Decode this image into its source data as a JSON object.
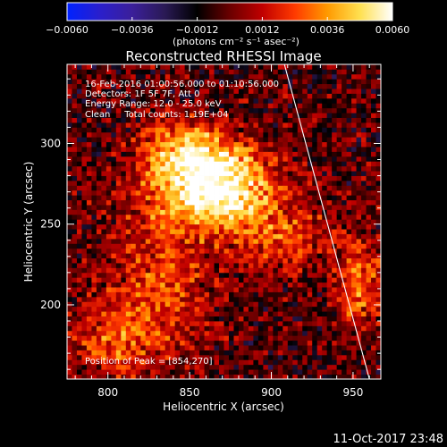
{
  "chart_data": {
    "type": "heatmap",
    "title": "Reconstructed RHESSI Image",
    "xlabel": "Heliocentric X (arcsec)",
    "ylabel": "Heliocentric Y (arcsec)",
    "xlim": [
      775,
      967
    ],
    "ylim": [
      154,
      349
    ],
    "x_ticks": [
      "800",
      "850",
      "900",
      "950"
    ],
    "y_ticks": [
      "200",
      "250",
      "300"
    ],
    "colorbar": {
      "label": "(photons cm⁻² s⁻¹ asec⁻²)",
      "range": [
        -0.006,
        0.006
      ],
      "ticks": [
        "−0.0060",
        "−0.0036",
        "−0.0012",
        "0.0012",
        "0.0036",
        "0.0060"
      ],
      "colors": [
        "#0022ff",
        "#2a1fcc",
        "#3b1f9a",
        "#2a1a55",
        "#000000",
        "#6a0000",
        "#c00000",
        "#ff3a00",
        "#ff9a00",
        "#ffe050",
        "#ffffff"
      ]
    },
    "annotations": [
      "16-Feb-2016 01:00:56.000 to 01:10:56.000",
      "Detectors: 1F 5F 7F, Att 0",
      "Energy Range: 12.0 - 25.0 keV",
      "Clean     Total counts: 1.19E+04"
    ],
    "peak_label": "Position of Peak = [854,270]",
    "peak": [
      854,
      270
    ],
    "limb_points": [
      [
        908,
        349
      ],
      [
        960,
        154
      ]
    ],
    "source_blobs": [
      {
        "x": 863,
        "y": 272,
        "sx": 26,
        "sy": 18,
        "amp": 1.0
      },
      {
        "x": 846,
        "y": 296,
        "sx": 18,
        "sy": 12,
        "amp": 0.45
      },
      {
        "x": 830,
        "y": 212,
        "sx": 22,
        "sy": 32,
        "amp": 0.35
      },
      {
        "x": 905,
        "y": 240,
        "sx": 22,
        "sy": 14,
        "amp": 0.35
      },
      {
        "x": 800,
        "y": 175,
        "sx": 18,
        "sy": 16,
        "amp": 0.35
      },
      {
        "x": 953,
        "y": 210,
        "sx": 10,
        "sy": 18,
        "amp": 0.45
      }
    ]
  },
  "footer_timestamp": "11-Oct-2017 23:48"
}
